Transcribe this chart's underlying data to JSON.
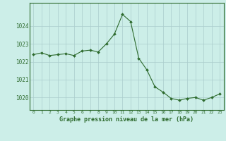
{
  "x": [
    0,
    1,
    2,
    3,
    4,
    5,
    6,
    7,
    8,
    9,
    10,
    11,
    12,
    13,
    14,
    15,
    16,
    17,
    18,
    19,
    20,
    21,
    22,
    23
  ],
  "y": [
    1022.4,
    1022.5,
    1022.35,
    1022.4,
    1022.45,
    1022.35,
    1022.6,
    1022.65,
    1022.55,
    1023.0,
    1023.55,
    1024.65,
    1024.25,
    1022.2,
    1021.55,
    1020.6,
    1020.3,
    1019.95,
    1019.85,
    1019.95,
    1020.0,
    1019.85,
    1020.0,
    1020.2
  ],
  "line_color": "#2d6a2d",
  "marker_color": "#2d6a2d",
  "bg_color": "#cceee8",
  "grid_color": "#aacccc",
  "title": "Graphe pression niveau de la mer (hPa)",
  "ylim_min": 1019.3,
  "ylim_max": 1025.3,
  "yticks": [
    1020,
    1021,
    1022,
    1023,
    1024
  ],
  "xtick_labels": [
    "0",
    "1",
    "2",
    "3",
    "4",
    "5",
    "6",
    "7",
    "8",
    "9",
    "10",
    "11",
    "12",
    "13",
    "14",
    "15",
    "16",
    "17",
    "18",
    "19",
    "20",
    "21",
    "22",
    "23"
  ]
}
